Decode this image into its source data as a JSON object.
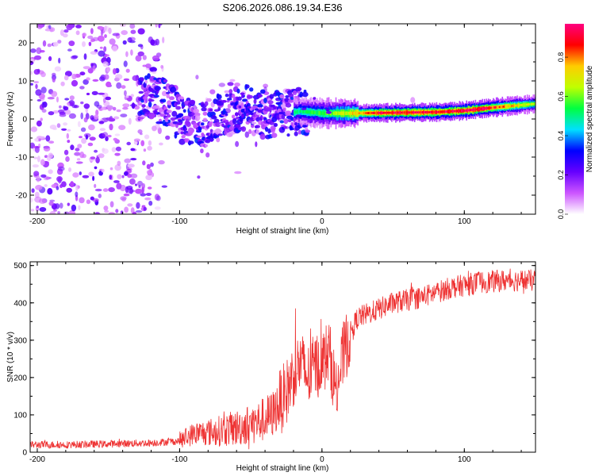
{
  "figure": {
    "title": "S206.2026.086.19.34.E36"
  },
  "chart_data": [
    {
      "type": "heatmap",
      "title": "S206.2026.086.19.34.E36",
      "xlabel": "Height of straight line (km)",
      "ylabel": "Frequency (Hz)",
      "xlim": [
        -205,
        150
      ],
      "ylim": [
        -25,
        25
      ],
      "xticks": [
        -200,
        -100,
        0,
        100
      ],
      "yticks": [
        -20,
        -10,
        0,
        10,
        20
      ],
      "xtick_labels": [
        "-200",
        "-100",
        "0",
        "100"
      ],
      "ytick_labels": [
        "-20",
        "-10",
        "0",
        "10",
        "20"
      ],
      "colorbar": {
        "label": "Normalized spectral amplitude",
        "range": [
          0,
          0.97
        ],
        "ticks": [
          0.0,
          0.2,
          0.4,
          0.6,
          0.8
        ],
        "tick_labels": [
          "0.0",
          "0.2",
          "0.4",
          "0.6",
          "0.8"
        ],
        "colormap": [
          "#ffffff",
          "#cc55ff",
          "#6600ff",
          "#0000ff",
          "#00e0ff",
          "#00ff40",
          "#c0ff00",
          "#ffcc00",
          "#ff0000",
          "#ff0080"
        ]
      },
      "ridge": [
        {
          "h": -125,
          "f": 6.0
        },
        {
          "h": -110,
          "f": 4.5
        },
        {
          "h": -100,
          "f": 0.0
        },
        {
          "h": -85,
          "f": -2.0
        },
        {
          "h": -70,
          "f": 1.0
        },
        {
          "h": -55,
          "f": 3.0
        },
        {
          "h": -40,
          "f": 1.0
        },
        {
          "h": -25,
          "f": 1.5
        },
        {
          "h": -15,
          "f": 2.0
        },
        {
          "h": 0,
          "f": 1.5
        },
        {
          "h": 20,
          "f": 1.5
        },
        {
          "h": 40,
          "f": 1.6
        },
        {
          "h": 60,
          "f": 1.7
        },
        {
          "h": 80,
          "f": 1.8
        },
        {
          "h": 100,
          "f": 2.2
        },
        {
          "h": 120,
          "f": 3.0
        },
        {
          "h": 135,
          "f": 3.5
        },
        {
          "h": 150,
          "f": 4.0
        }
      ],
      "ridge_amplitude": [
        {
          "h": -125,
          "a": 0.25
        },
        {
          "h": -100,
          "a": 0.3
        },
        {
          "h": -60,
          "a": 0.35
        },
        {
          "h": -20,
          "a": 0.5
        },
        {
          "h": 0,
          "a": 0.55
        },
        {
          "h": 20,
          "a": 0.7
        },
        {
          "h": 40,
          "a": 0.9
        },
        {
          "h": 80,
          "a": 0.92
        },
        {
          "h": 110,
          "a": 0.95
        },
        {
          "h": 150,
          "a": 0.6
        }
      ]
    },
    {
      "type": "line",
      "xlabel": "Height of straight line (km)",
      "ylabel": "SNR (10 * v/v)",
      "xlim": [
        -205,
        150
      ],
      "ylim": [
        0,
        510
      ],
      "xticks": [
        -200,
        -100,
        0,
        100
      ],
      "yticks": [
        0,
        100,
        200,
        300,
        400,
        500
      ],
      "xtick_labels": [
        "-200",
        "-100",
        "0",
        "100"
      ],
      "ytick_labels": [
        "0",
        "100",
        "200",
        "300",
        "400",
        "500"
      ],
      "color": "#ee3333",
      "series": [
        {
          "name": "SNR",
          "points": [
            {
              "x": -205,
              "y": 20
            },
            {
              "x": -180,
              "y": 20
            },
            {
              "x": -150,
              "y": 22
            },
            {
              "x": -120,
              "y": 25
            },
            {
              "x": -100,
              "y": 30
            },
            {
              "x": -90,
              "y": 50
            },
            {
              "x": -75,
              "y": 55
            },
            {
              "x": -60,
              "y": 65
            },
            {
              "x": -45,
              "y": 80
            },
            {
              "x": -35,
              "y": 100
            },
            {
              "x": -25,
              "y": 160
            },
            {
              "x": -20,
              "y": 210
            },
            {
              "x": -15,
              "y": 240
            },
            {
              "x": -10,
              "y": 200
            },
            {
              "x": -5,
              "y": 230
            },
            {
              "x": 0,
              "y": 240
            },
            {
              "x": 5,
              "y": 270
            },
            {
              "x": 10,
              "y": 160
            },
            {
              "x": 15,
              "y": 260
            },
            {
              "x": 20,
              "y": 320
            },
            {
              "x": 25,
              "y": 360
            },
            {
              "x": 35,
              "y": 375
            },
            {
              "x": 50,
              "y": 400
            },
            {
              "x": 70,
              "y": 415
            },
            {
              "x": 90,
              "y": 440
            },
            {
              "x": 110,
              "y": 455
            },
            {
              "x": 130,
              "y": 460
            },
            {
              "x": 150,
              "y": 460
            }
          ]
        }
      ]
    }
  ]
}
